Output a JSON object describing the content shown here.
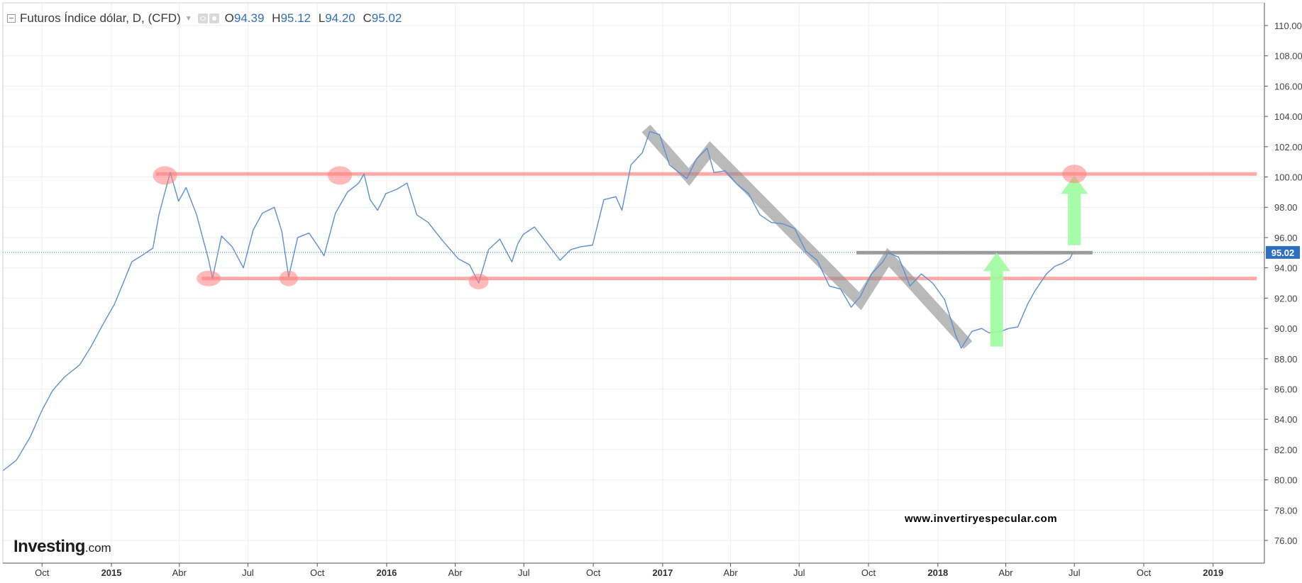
{
  "legend": {
    "title": "Futuros Índice dólar, D, (CFD)",
    "open_label": "O",
    "open": "94.39",
    "high_label": "H",
    "high": "95.12",
    "low_label": "L",
    "low": "94.20",
    "close_label": "C",
    "close": "95.02"
  },
  "logo": {
    "brand": "Investing",
    "domain": ".com"
  },
  "watermark": "www.invertiryespecular.com",
  "colors": {
    "price_line": "#5b8fd6",
    "support_resistance": "#ff9b9b",
    "gray_path": "#8c8c8c",
    "green_arrow": "#9dfc9d",
    "current_price_tag": "#2f6fbf",
    "grid": "#eeeeee"
  },
  "chart_data": {
    "type": "line",
    "x_range": [
      "2014-08-10",
      "2019-03-10"
    ],
    "ylim": [
      74.5,
      111.5
    ],
    "grid": true,
    "current_price": "95.02",
    "y_ticks": [
      "76.00",
      "78.00",
      "80.00",
      "82.00",
      "84.00",
      "86.00",
      "88.00",
      "90.00",
      "92.00",
      "94.00",
      "96.00",
      "98.00",
      "100.00",
      "102.00",
      "104.00",
      "106.00",
      "108.00",
      "110.00"
    ],
    "x_ticks": [
      {
        "date": "2014-10-01",
        "label": "Oct",
        "bold": false
      },
      {
        "date": "2015-01-01",
        "label": "2015",
        "bold": true
      },
      {
        "date": "2015-04-01",
        "label": "Abr",
        "bold": false
      },
      {
        "date": "2015-07-01",
        "label": "Jul",
        "bold": false
      },
      {
        "date": "2015-10-01",
        "label": "Oct",
        "bold": false
      },
      {
        "date": "2016-01-01",
        "label": "2016",
        "bold": true
      },
      {
        "date": "2016-04-01",
        "label": "Abr",
        "bold": false
      },
      {
        "date": "2016-07-01",
        "label": "Jul",
        "bold": false
      },
      {
        "date": "2016-10-01",
        "label": "Oct",
        "bold": false
      },
      {
        "date": "2017-01-01",
        "label": "2017",
        "bold": true
      },
      {
        "date": "2017-04-01",
        "label": "Abr",
        "bold": false
      },
      {
        "date": "2017-07-01",
        "label": "Jul",
        "bold": false
      },
      {
        "date": "2017-10-01",
        "label": "Oct",
        "bold": false
      },
      {
        "date": "2018-01-01",
        "label": "2018",
        "bold": true
      },
      {
        "date": "2018-04-01",
        "label": "Abr",
        "bold": false
      },
      {
        "date": "2018-07-01",
        "label": "Jul",
        "bold": false
      },
      {
        "date": "2018-10-01",
        "label": "Oct",
        "bold": false
      },
      {
        "date": "2019-01-01",
        "label": "2019",
        "bold": true
      }
    ],
    "series": [
      {
        "dates": [
          "2014-08-10",
          "2014-08-28",
          "2014-09-15",
          "2014-10-01",
          "2014-10-15",
          "2014-10-31",
          "2014-11-20",
          "2014-12-05",
          "2014-12-20",
          "2015-01-05",
          "2015-01-15",
          "2015-01-28",
          "2015-02-10",
          "2015-02-25",
          "2015-03-05",
          "2015-03-13",
          "2015-03-20",
          "2015-03-31",
          "2015-04-10",
          "2015-04-24",
          "2015-05-10",
          "2015-05-15",
          "2015-05-27",
          "2015-06-10",
          "2015-06-25",
          "2015-07-08",
          "2015-07-20",
          "2015-08-05",
          "2015-08-15",
          "2015-08-24",
          "2015-09-05",
          "2015-09-20",
          "2015-10-01",
          "2015-10-10",
          "2015-10-25",
          "2015-11-10",
          "2015-11-25",
          "2015-12-02",
          "2015-12-10",
          "2015-12-20",
          "2015-12-31",
          "2016-01-15",
          "2016-01-28",
          "2016-02-10",
          "2016-02-25",
          "2016-03-15",
          "2016-04-05",
          "2016-04-20",
          "2016-05-02",
          "2016-05-15",
          "2016-05-30",
          "2016-06-15",
          "2016-06-23",
          "2016-06-30",
          "2016-07-15",
          "2016-08-01",
          "2016-08-18",
          "2016-09-01",
          "2016-09-15",
          "2016-09-30",
          "2016-10-15",
          "2016-10-31",
          "2016-11-08",
          "2016-11-20",
          "2016-12-05",
          "2016-12-15",
          "2016-12-28",
          "2017-01-10",
          "2017-01-20",
          "2017-02-02",
          "2017-02-15",
          "2017-03-01",
          "2017-03-10",
          "2017-03-25",
          "2017-04-10",
          "2017-04-25",
          "2017-05-10",
          "2017-05-25",
          "2017-06-10",
          "2017-06-25",
          "2017-07-10",
          "2017-07-25",
          "2017-08-10",
          "2017-08-25",
          "2017-09-08",
          "2017-09-20",
          "2017-10-05",
          "2017-10-20",
          "2017-10-27",
          "2017-11-10",
          "2017-11-25",
          "2017-12-10",
          "2017-12-25",
          "2018-01-10",
          "2018-01-25",
          "2018-02-01",
          "2018-02-15",
          "2018-02-28",
          "2018-03-10",
          "2018-03-25",
          "2018-04-05",
          "2018-04-17",
          "2018-04-30",
          "2018-05-10",
          "2018-05-25",
          "2018-06-05",
          "2018-06-15",
          "2018-06-25",
          "2018-06-29"
        ],
        "values": [
          80.6,
          81.3,
          82.8,
          84.6,
          85.9,
          86.8,
          87.6,
          88.8,
          90.2,
          91.6,
          92.8,
          94.4,
          94.8,
          95.3,
          97.5,
          99.0,
          100.3,
          98.4,
          99.3,
          97.5,
          94.5,
          93.3,
          96.1,
          95.4,
          94.0,
          96.5,
          97.6,
          98.0,
          96.4,
          93.4,
          96.0,
          96.3,
          95.5,
          94.8,
          97.6,
          99.0,
          99.6,
          100.2,
          98.5,
          97.8,
          98.9,
          99.2,
          99.6,
          97.5,
          97.0,
          95.8,
          94.6,
          94.2,
          93.0,
          95.2,
          95.9,
          94.4,
          95.6,
          96.2,
          96.7,
          95.6,
          94.5,
          95.2,
          95.4,
          95.5,
          98.5,
          98.7,
          97.8,
          100.8,
          101.6,
          103.0,
          102.8,
          100.8,
          100.4,
          99.9,
          101.2,
          101.9,
          100.3,
          100.4,
          99.5,
          98.9,
          97.5,
          97.0,
          96.9,
          96.6,
          95.1,
          94.5,
          92.8,
          92.6,
          91.4,
          92.1,
          93.6,
          94.4,
          95.0,
          94.7,
          92.8,
          93.6,
          93.0,
          91.9,
          89.5,
          88.7,
          89.8,
          90.0,
          89.7,
          89.8,
          90.0,
          90.1,
          91.6,
          92.5,
          93.6,
          94.1,
          94.3,
          94.6,
          95.0
        ]
      }
    ]
  }
}
